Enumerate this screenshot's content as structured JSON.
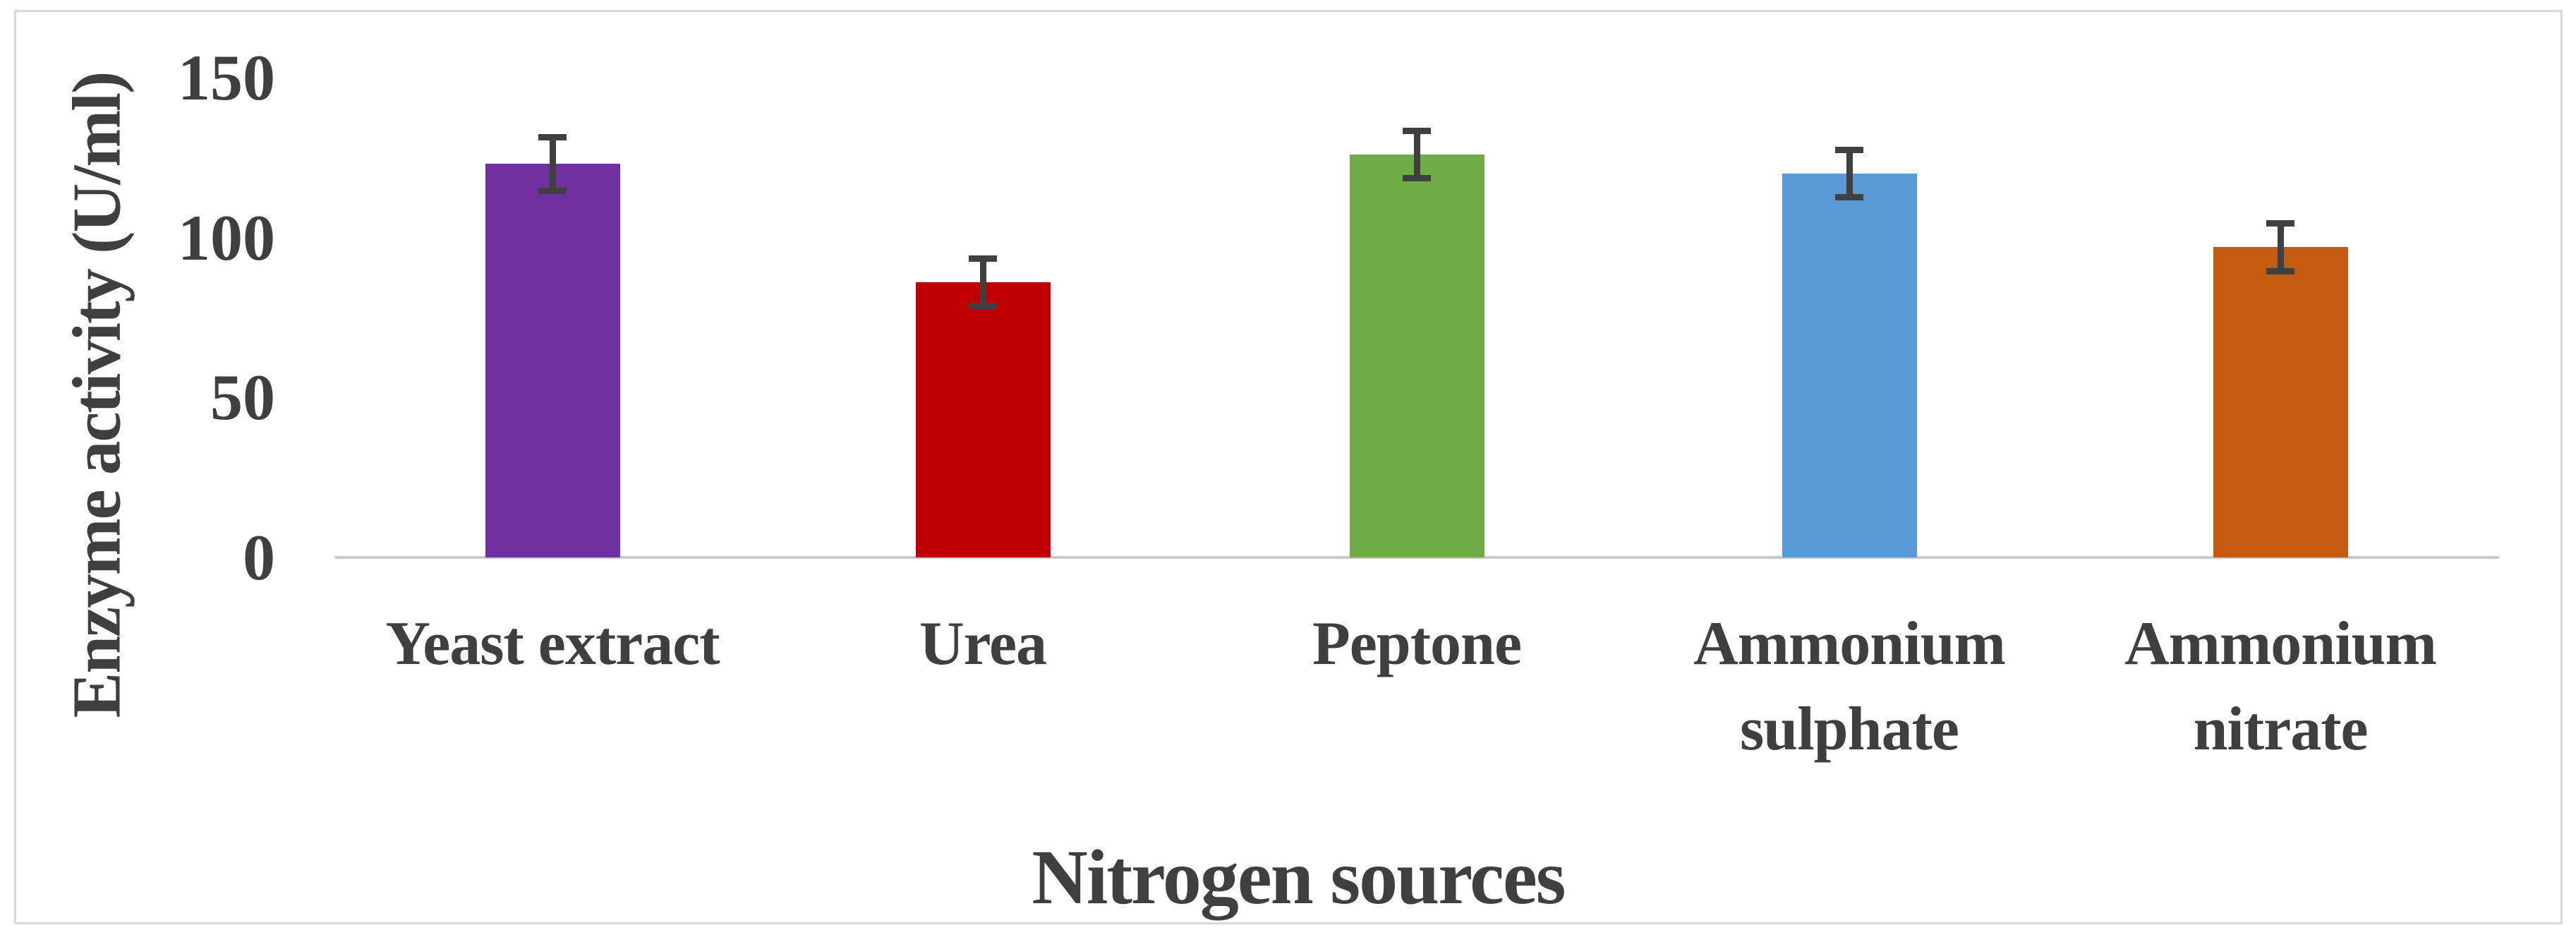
{
  "figure": {
    "frame_border_color": "#D9D9D9",
    "background_color": "#FFFFFF"
  },
  "chart_data": {
    "type": "bar",
    "title": "",
    "xlabel": "Nitrogen sources",
    "ylabel": "Enzyme activity (U/ml)",
    "categories": [
      "Yeast extract",
      "Urea",
      "Peptone",
      "Ammonium sulphate",
      "Ammonium nitrate"
    ],
    "values": [
      123,
      86,
      126,
      120,
      97
    ],
    "error_bars": [
      9,
      8,
      8,
      8,
      8
    ],
    "ylim": [
      0,
      150
    ],
    "yticks": [
      0,
      50,
      100,
      150
    ],
    "grid": false,
    "legend": false,
    "bar_colors": [
      "#7030A0",
      "#C00000",
      "#70AD47",
      "#5B9BD5",
      "#C55A11"
    ],
    "error_bar_color": "#404040",
    "axis_line_color": "#C9C9C9",
    "text_color": "#3F3F3F"
  }
}
